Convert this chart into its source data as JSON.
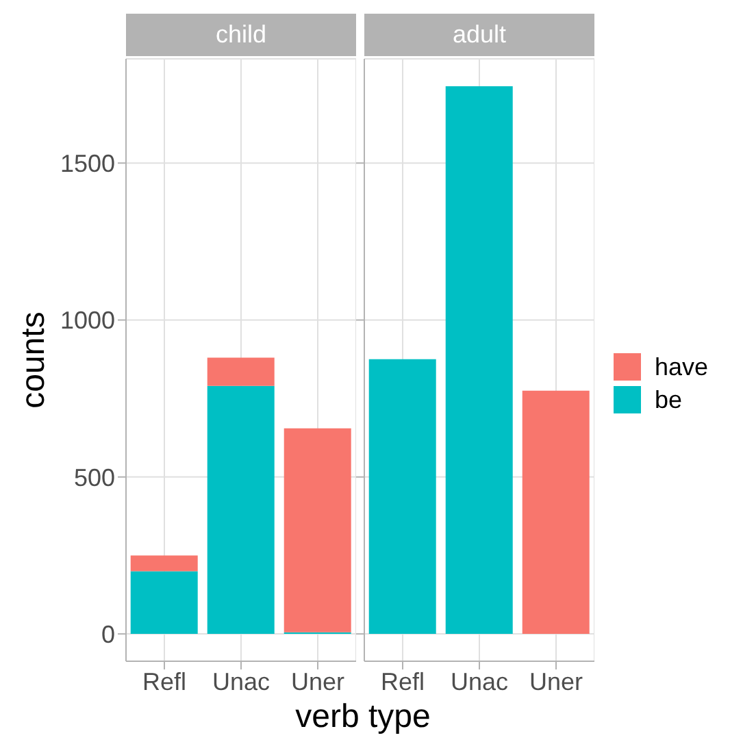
{
  "chart_data": [
    {
      "type": "bar",
      "title": "child",
      "ylabel": "counts",
      "xlabel": "verb type",
      "categories": [
        "Refl",
        "Unac",
        "Uner"
      ],
      "stacked": true,
      "series": [
        {
          "color": "#00bfc4",
          "values": [
            200,
            790,
            5
          ]
        },
        {
          "color": "#f8766d",
          "values": [
            50,
            90,
            650
          ]
        }
      ],
      "ylim": [
        -87,
        1832
      ],
      "yticks": [
        0,
        500,
        1000,
        1500
      ],
      "grid": true
    },
    {
      "type": "bar",
      "title": "adult",
      "categories": [
        "Refl",
        "Unac",
        "Uner"
      ],
      "stacked": true,
      "series": [
        {
          "name": "be",
          "color": "#00bfc4",
          "values": [
            875,
            1745,
            0
          ]
        },
        {
          "name": "have",
          "color": "#f8766d",
          "values": [
            0,
            0,
            775
          ]
        }
      ],
      "ylim": [
        -87,
        1832
      ],
      "yticks": [
        0,
        500,
        1000,
        1500
      ],
      "grid": true,
      "tick_labels": "x",
      "legend": "right"
    }
  ]
}
